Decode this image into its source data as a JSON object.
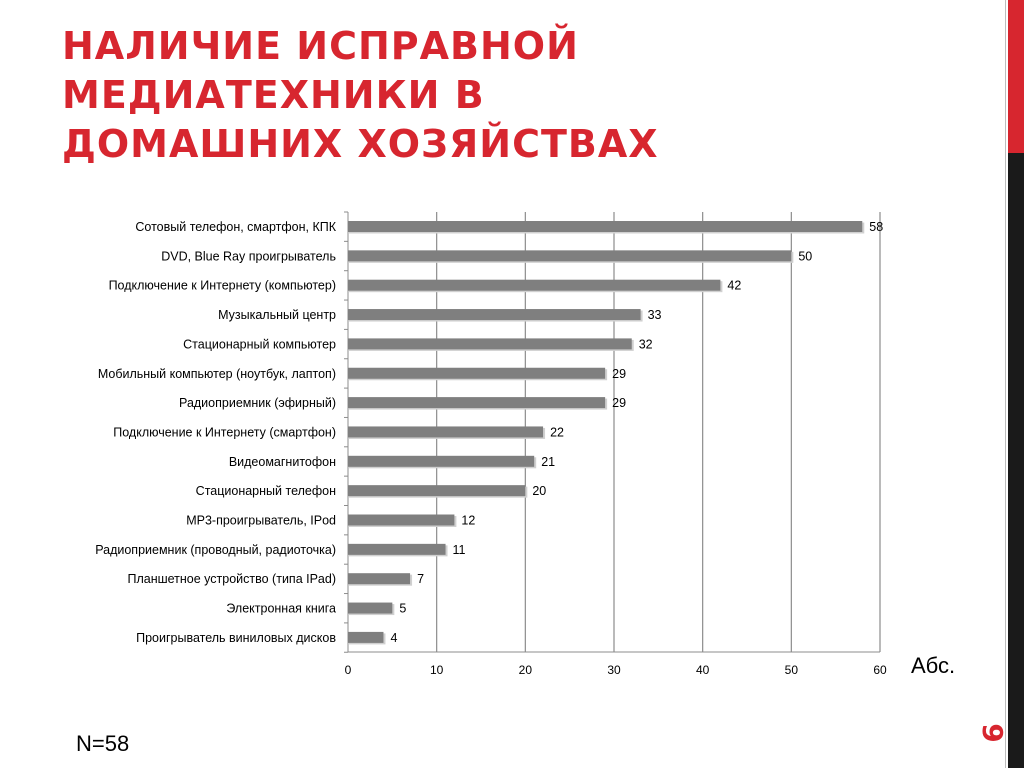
{
  "slide": {
    "title": "НАЛИЧИЕ ИСПРАВНОЙ МЕДИАТЕХНИКИ В ДОМАШНИХ ХОЗЯЙСТВАХ",
    "page_number": "9",
    "unit_label": "Абс.",
    "sample_note": "N=58"
  },
  "colors": {
    "accent": "#d7262f",
    "bar": "#7f7f7f",
    "gridline": "#8c8c8c",
    "dark_bar": "#1a1a1a"
  },
  "chart_data": {
    "type": "bar",
    "orientation": "horizontal",
    "categories": [
      "Сотовый телефон, смартфон, КПК",
      "DVD, Blue Ray проигрыватель",
      "Подключение к Интернету (компьютер)",
      "Музыкальный центр",
      "Стационарный компьютер",
      "Мобильный компьютер (ноутбук, лаптоп)",
      "Радиоприемник (эфирный)",
      "Подключение к Интернету (смартфон)",
      "Видеомагнитофон",
      "Стационарный телефон",
      "MP3-проигрыватель, IPod",
      "Радиоприемник (проводный, радиоточка)",
      "Планшетное устройство (типа IPad)",
      "Электронная книга",
      "Проигрыватель виниловых дисков"
    ],
    "values": [
      58,
      50,
      42,
      33,
      32,
      29,
      29,
      22,
      21,
      20,
      12,
      11,
      7,
      5,
      4
    ],
    "xlim": [
      0,
      60
    ],
    "xticks": [
      0,
      10,
      20,
      30,
      40,
      50,
      60
    ],
    "grid": true,
    "data_labels": true
  }
}
